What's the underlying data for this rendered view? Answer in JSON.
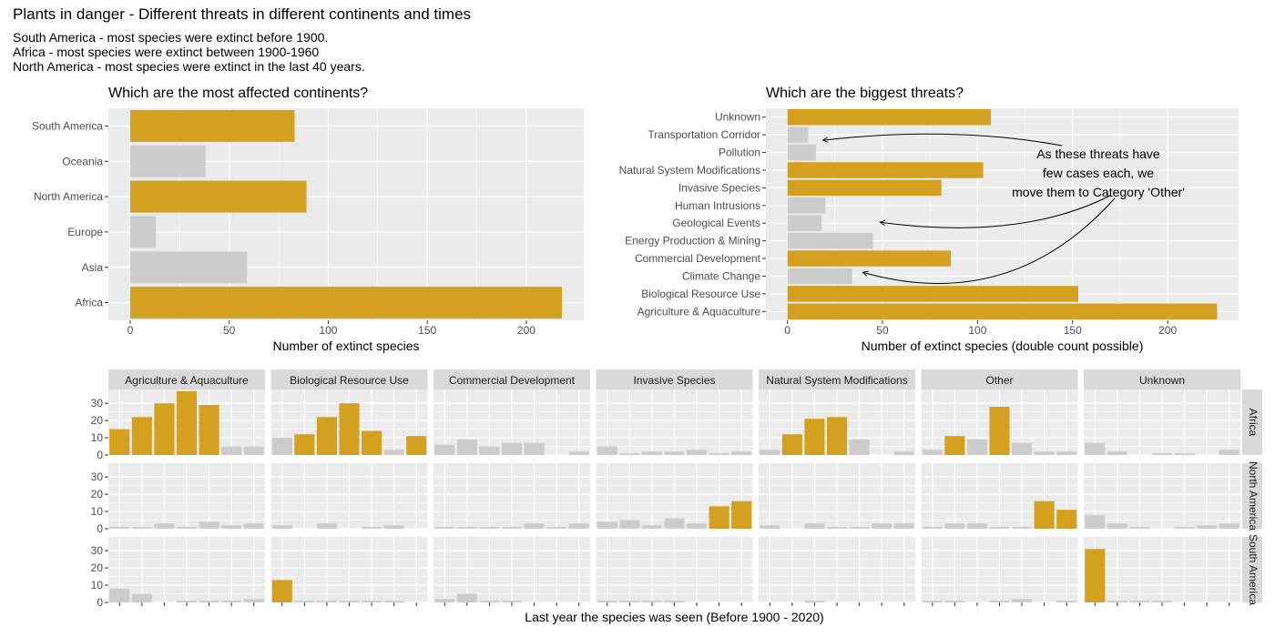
{
  "title": "Plants in danger - Different threats in different continents and times",
  "subtitle": [
    "South America - most species were extinct before 1900.",
    "Africa - most species were extinct between 1900-1960",
    "North America - most species were extinct in the last 40 years."
  ],
  "colors": {
    "highlight": "#D4A020",
    "muted": "#CCCCCC",
    "panel_bg": "#EBEBEB",
    "strip_bg": "#D9D9D9",
    "grid": "#FFFFFF"
  },
  "chart_data": [
    {
      "type": "bar",
      "orientation": "horizontal",
      "title": "Which are the most affected continents?",
      "xlabel": "Number of extinct species",
      "ylabel": "",
      "categories": [
        "South America",
        "Oceania",
        "North America",
        "Europe",
        "Asia",
        "Africa"
      ],
      "values": [
        83,
        38,
        89,
        13,
        59,
        218
      ],
      "highlighted": [
        true,
        false,
        true,
        false,
        false,
        true
      ],
      "xlim": [
        -11,
        229
      ],
      "xticks": [
        0,
        50,
        100,
        150,
        200
      ],
      "grid": true
    },
    {
      "type": "bar",
      "orientation": "horizontal",
      "title": "Which are the biggest threats?",
      "xlabel": "Number of extinct species (double count possible)",
      "ylabel": "",
      "categories": [
        "Unknown",
        "Transportation Corridor",
        "Pollution",
        "Natural System Modifications",
        "Invasive Species",
        "Human Intrusions",
        "Geological Events",
        "Energy Production & Mining",
        "Commercial Development",
        "Climate Change",
        "Biological Resource Use",
        "Agriculture & Aquaculture"
      ],
      "values": [
        107,
        11,
        15,
        103,
        81,
        20,
        18,
        45,
        86,
        34,
        153,
        226
      ],
      "highlighted": [
        true,
        false,
        false,
        true,
        true,
        false,
        false,
        false,
        true,
        false,
        true,
        true
      ],
      "xlim": [
        -11.3,
        237.3
      ],
      "xticks": [
        0,
        50,
        100,
        150,
        200
      ],
      "grid": true,
      "annotation": {
        "lines": [
          "As these threats have",
          "few cases each, we",
          "move them to Category 'Other'"
        ],
        "arrows_to": [
          "Transportation Corridor",
          "Geological Events",
          "Climate Change"
        ]
      }
    },
    {
      "type": "bar",
      "faceted": true,
      "xlabel": "Last year the species was seen (Before 1900 - 2020)",
      "ylabel": "",
      "ylim": [
        0,
        38
      ],
      "yticks": [
        0,
        10,
        20,
        30
      ],
      "x_categories": 7,
      "facet_columns": [
        "Agriculture & Aquaculture",
        "Biological Resource Use",
        "Commercial Development",
        "Invasive Species",
        "Natural System Modifications",
        "Other",
        "Unknown"
      ],
      "facet_rows": [
        "Africa",
        "North America",
        "South America"
      ],
      "panels": [
        [
          {
            "values": [
              15,
              22,
              30,
              37,
              29,
              5,
              5
            ],
            "highlighted": [
              true,
              true,
              true,
              true,
              true,
              false,
              false
            ]
          },
          {
            "values": [
              10,
              12,
              22,
              30,
              14,
              3,
              11
            ],
            "highlighted": [
              false,
              true,
              true,
              true,
              true,
              false,
              true
            ]
          },
          {
            "values": [
              6,
              9,
              5,
              7,
              7,
              0,
              2
            ],
            "highlighted": [
              false,
              false,
              false,
              false,
              false,
              false,
              false
            ]
          },
          {
            "values": [
              5,
              1,
              2,
              2,
              3,
              1,
              2
            ],
            "highlighted": [
              false,
              false,
              false,
              false,
              false,
              false,
              false
            ]
          },
          {
            "values": [
              3,
              12,
              21,
              22,
              9,
              0,
              2
            ],
            "highlighted": [
              false,
              true,
              true,
              true,
              false,
              false,
              false
            ]
          },
          {
            "values": [
              3,
              11,
              9,
              28,
              7,
              2,
              2
            ],
            "highlighted": [
              false,
              true,
              false,
              true,
              false,
              false,
              false
            ]
          },
          {
            "values": [
              7,
              2,
              0,
              1,
              1,
              0,
              3
            ],
            "highlighted": [
              false,
              false,
              false,
              false,
              false,
              false,
              false
            ]
          }
        ],
        [
          {
            "values": [
              1,
              1,
              3,
              1,
              4,
              2,
              3
            ],
            "highlighted": [
              false,
              false,
              false,
              false,
              false,
              false,
              false
            ]
          },
          {
            "values": [
              2,
              0,
              3,
              0,
              1,
              2,
              0
            ],
            "highlighted": [
              false,
              false,
              false,
              false,
              false,
              false,
              false
            ]
          },
          {
            "values": [
              1,
              1,
              1,
              1,
              3,
              1,
              3
            ],
            "highlighted": [
              false,
              false,
              false,
              false,
              false,
              false,
              false
            ]
          },
          {
            "values": [
              4,
              5,
              2,
              6,
              3,
              13,
              16
            ],
            "highlighted": [
              false,
              false,
              false,
              false,
              false,
              true,
              true
            ]
          },
          {
            "values": [
              2,
              0,
              3,
              1,
              1,
              3,
              3
            ],
            "highlighted": [
              false,
              false,
              false,
              false,
              false,
              false,
              false
            ]
          },
          {
            "values": [
              1,
              3,
              3,
              1,
              1,
              16,
              11
            ],
            "highlighted": [
              false,
              false,
              false,
              false,
              false,
              true,
              true
            ]
          },
          {
            "values": [
              8,
              3,
              1,
              0,
              1,
              2,
              3
            ],
            "highlighted": [
              false,
              false,
              false,
              false,
              false,
              false,
              false
            ]
          }
        ],
        [
          {
            "values": [
              8,
              5,
              0,
              1,
              1,
              1,
              2
            ],
            "highlighted": [
              false,
              false,
              false,
              false,
              false,
              false,
              false
            ]
          },
          {
            "values": [
              13,
              1,
              1,
              1,
              1,
              1,
              0
            ],
            "highlighted": [
              true,
              false,
              false,
              false,
              false,
              false,
              false
            ]
          },
          {
            "values": [
              2,
              5,
              1,
              1,
              0,
              0,
              0
            ],
            "highlighted": [
              false,
              false,
              false,
              false,
              false,
              false,
              false
            ]
          },
          {
            "values": [
              1,
              1,
              1,
              1,
              0,
              0,
              0
            ],
            "highlighted": [
              false,
              false,
              false,
              false,
              false,
              false,
              false
            ]
          },
          {
            "values": [
              0,
              0,
              1,
              0,
              0,
              0,
              0
            ],
            "highlighted": [
              false,
              false,
              false,
              false,
              false,
              false,
              false
            ]
          },
          {
            "values": [
              1,
              1,
              0,
              1,
              2,
              0,
              1
            ],
            "highlighted": [
              false,
              false,
              false,
              false,
              false,
              false,
              false
            ]
          },
          {
            "values": [
              31,
              1,
              1,
              1,
              0,
              0,
              0
            ],
            "highlighted": [
              true,
              false,
              false,
              false,
              false,
              false,
              false
            ]
          }
        ]
      ]
    }
  ]
}
